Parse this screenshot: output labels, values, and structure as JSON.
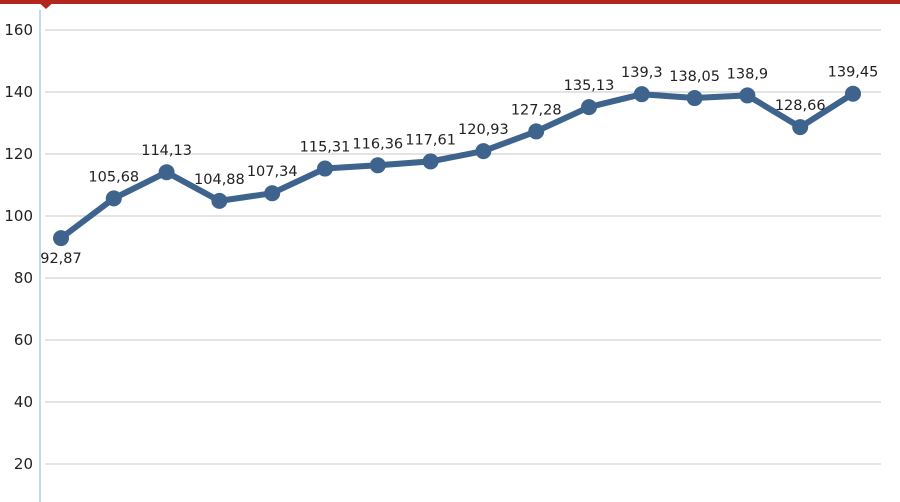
{
  "chart_data": {
    "type": "line",
    "title": "",
    "xlabel": "",
    "ylabel": "",
    "ylim": [
      20,
      160
    ],
    "y_ticks": [
      20,
      40,
      60,
      80,
      100,
      120,
      140,
      160
    ],
    "grid": true,
    "legend": "none",
    "series": [
      {
        "values": [
          92.87,
          105.68,
          114.13,
          104.88,
          107.34,
          115.31,
          116.36,
          117.61,
          120.93,
          127.28,
          135.13,
          139.3,
          138.05,
          138.9,
          128.66,
          139.45
        ],
        "labels": [
          "92,87",
          "105,68",
          "114,13",
          "104,88",
          "107,34",
          "115,31",
          "116,36",
          "117,61",
          "120,93",
          "127,28",
          "135,13",
          "139,3",
          "138,05",
          "138,9",
          "128,66",
          "139,45"
        ],
        "label_position": [
          "below",
          "above",
          "above",
          "above",
          "above",
          "above",
          "above",
          "above",
          "above",
          "above",
          "above",
          "above",
          "above",
          "above",
          "above",
          "above"
        ]
      }
    ],
    "colors": {
      "line": "#3e638d",
      "grid": "#c8c8c8",
      "axis": "#7fb6d6",
      "accent": "#b3261e"
    }
  }
}
